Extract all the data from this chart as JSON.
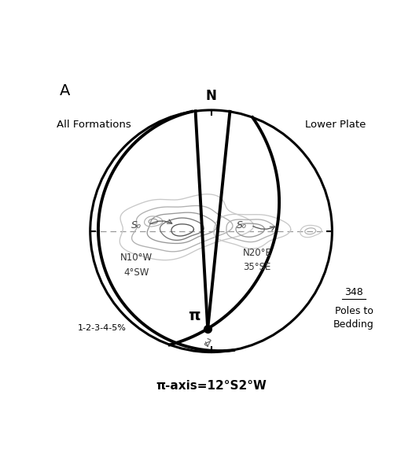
{
  "title_label": "A",
  "label_all_formations": "All Formations",
  "label_lower_plate": "Lower Plate",
  "label_north": "N",
  "label_pi_axis": "π-axis=12°S2°W",
  "label_pi": "π",
  "label_s0_left_1": "S₀",
  "label_s0_left_2": "N10°W",
  "label_s0_left_3": "4°SW",
  "label_s0_right_1": "S₀",
  "label_s0_right_2": "N20°E",
  "label_s0_right_3": "35°SE",
  "label_contour": "1-2-3-4-5%",
  "label_poles_1": "348",
  "label_poles_2": "Poles to",
  "label_poles_3": "Bedding",
  "plane1_strike": 170,
  "plane1_dip": 4,
  "plane2_strike": 20,
  "plane2_dip": 35,
  "pi_trend": 182,
  "pi_plunge": 12,
  "circle_lw": 2.2,
  "great_circle_lw": 2.8,
  "contour_lw": 1.0,
  "bg_color": "#ffffff",
  "gc_color": "#000000",
  "contour_colors": [
    "#c8c8c8",
    "#b0b0b0",
    "#989898",
    "#787878",
    "#585858"
  ],
  "dashed_color": "#999999"
}
